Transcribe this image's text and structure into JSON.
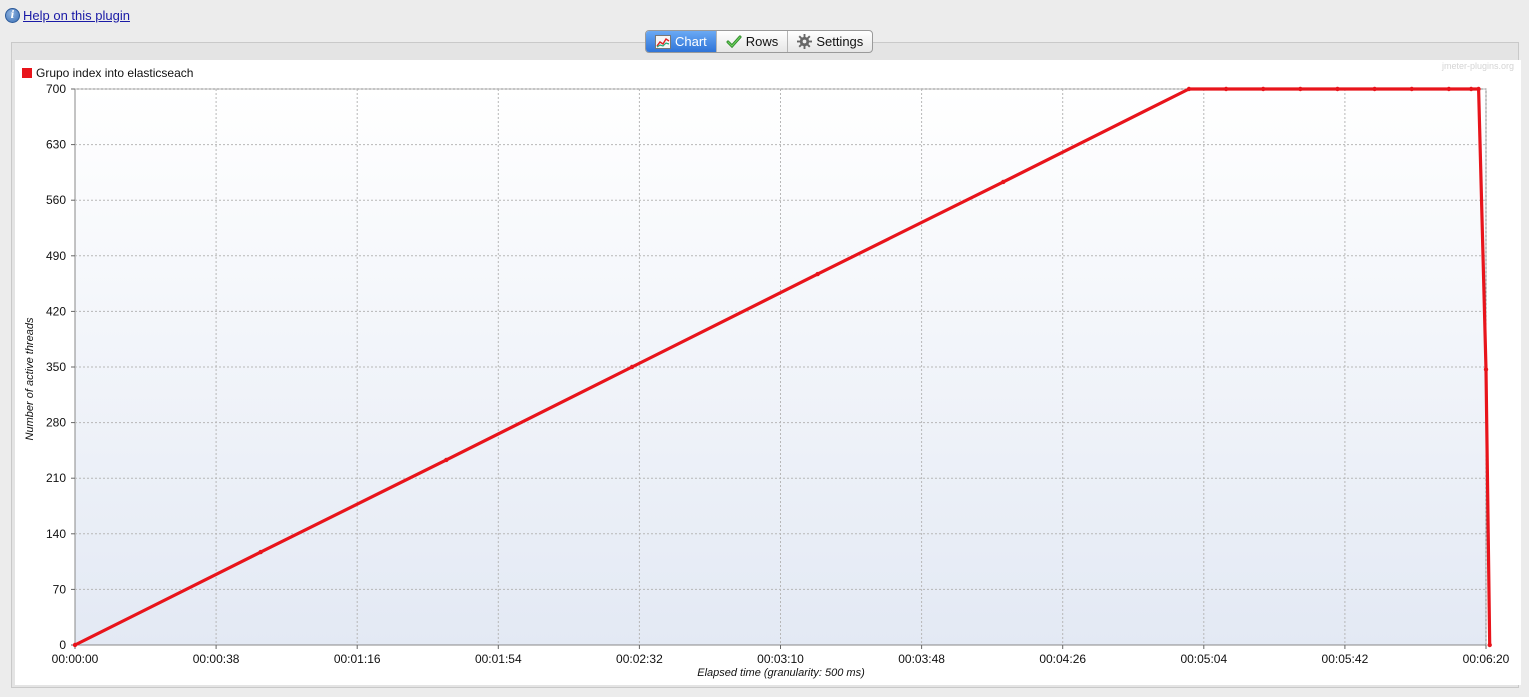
{
  "help": {
    "icon": "info-icon",
    "link_label": "Help on this plugin"
  },
  "tabs": [
    {
      "label": "Chart",
      "icon": "chart-icon",
      "active": true
    },
    {
      "label": "Rows",
      "icon": "checkmark-icon",
      "active": false
    },
    {
      "label": "Settings",
      "icon": "gear-icon",
      "active": false
    }
  ],
  "watermark": "jmeter-plugins.org",
  "chart_data": {
    "type": "line",
    "title": "",
    "legend_position": "top-left",
    "xlabel": "Elapsed time (granularity: 500 ms)",
    "ylabel": "Number of active threads",
    "xlim": [
      0,
      380
    ],
    "ylim": [
      0,
      700
    ],
    "grid": true,
    "x_ticks": [
      0,
      38,
      76,
      114,
      152,
      190,
      228,
      266,
      304,
      342,
      380
    ],
    "x_tick_labels": [
      "00:00:00",
      "00:00:38",
      "00:01:16",
      "00:01:54",
      "00:02:32",
      "00:03:10",
      "00:03:48",
      "00:04:26",
      "00:05:04",
      "00:05:42",
      "00:06:20"
    ],
    "y_ticks": [
      0,
      70,
      140,
      210,
      280,
      350,
      420,
      490,
      560,
      630,
      700
    ],
    "y_tick_labels": [
      "0",
      "70",
      "140",
      "210",
      "280",
      "350",
      "420",
      "490",
      "560",
      "630",
      "700"
    ],
    "series_color": "#e8141b",
    "series": [
      {
        "name": "Grupo index into elasticseach",
        "x": [
          0,
          50,
          100,
          150,
          200,
          250,
          300,
          310,
          320,
          330,
          340,
          350,
          360,
          370,
          376,
          378,
          380,
          381
        ],
        "y": [
          0,
          117,
          233,
          350,
          467,
          583,
          700,
          700,
          700,
          700,
          700,
          700,
          700,
          700,
          700,
          700,
          347,
          0
        ]
      }
    ]
  }
}
